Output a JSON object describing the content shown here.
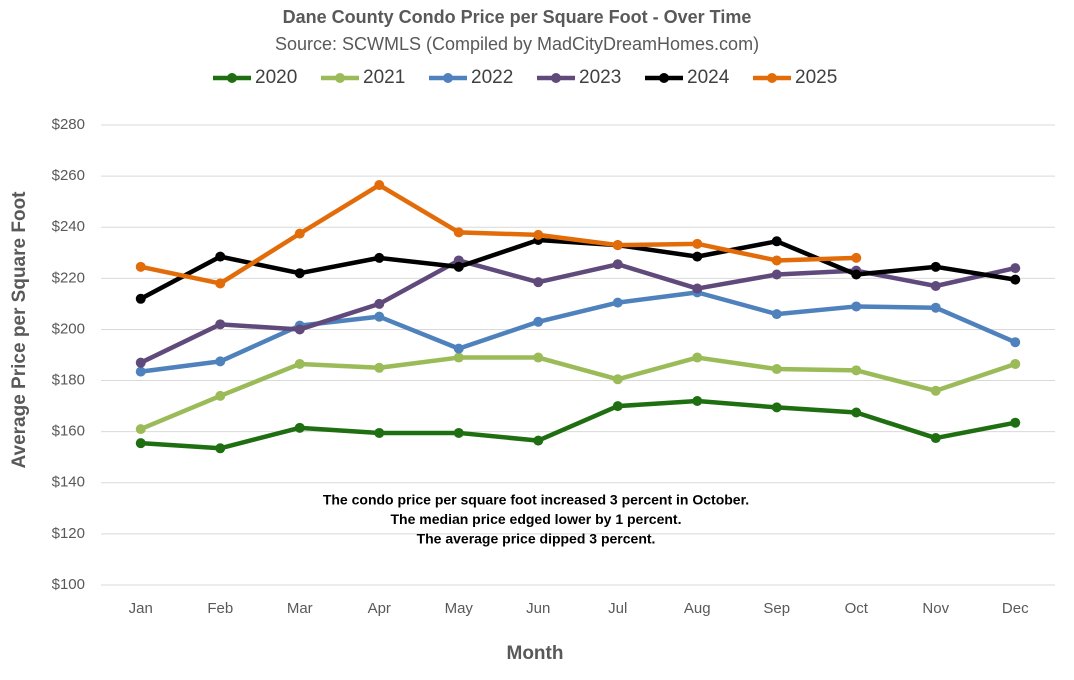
{
  "chart_data": {
    "type": "line",
    "title": "Dane County Condo Price per Square Foot - Over Time",
    "subtitle": "Source: SCWMLS (Compiled by MadCityDreamHomes.com)",
    "x_label": "Month",
    "y_label": "Average Price per Square Foot",
    "categories": [
      "Jan",
      "Feb",
      "Mar",
      "Apr",
      "May",
      "Jun",
      "Jul",
      "Aug",
      "Sep",
      "Oct",
      "Nov",
      "Dec"
    ],
    "series": [
      {
        "name": "2020",
        "color": "#1f6f12",
        "values": [
          155.5,
          153.5,
          161.5,
          159.5,
          159.5,
          156.5,
          170,
          172,
          169.5,
          167.5,
          157.5,
          163.5
        ]
      },
      {
        "name": "2021",
        "color": "#9bbb59",
        "values": [
          161,
          174,
          186.5,
          185,
          189,
          189,
          180.5,
          189,
          184.5,
          184,
          176,
          186.5
        ]
      },
      {
        "name": "2022",
        "color": "#4f81bd",
        "values": [
          183.5,
          187.5,
          201.5,
          205,
          192.5,
          203,
          210.5,
          214.5,
          206,
          209,
          208.5,
          195
        ]
      },
      {
        "name": "2023",
        "color": "#604a7b",
        "values": [
          187,
          202,
          200,
          210,
          227,
          218.5,
          225.5,
          216,
          221.5,
          223,
          217,
          224
        ]
      },
      {
        "name": "2024",
        "color": "#000000",
        "values": [
          212,
          228.5,
          222,
          228,
          224.5,
          235,
          233,
          228.5,
          234.5,
          221.5,
          224.5,
          219.5
        ]
      },
      {
        "name": "2025",
        "color": "#e36c0a",
        "values": [
          224.5,
          218,
          237.5,
          256.5,
          238,
          237,
          233,
          233.5,
          227,
          228,
          null,
          null
        ]
      }
    ],
    "ylim": [
      100,
      280
    ],
    "yticks": [
      {
        "value": 100,
        "label": "$100"
      },
      {
        "value": 120,
        "label": "$120"
      },
      {
        "value": 140,
        "label": "$140"
      },
      {
        "value": 160,
        "label": "$160"
      },
      {
        "value": 180,
        "label": "$180"
      },
      {
        "value": 200,
        "label": "$200"
      },
      {
        "value": 220,
        "label": "$220"
      },
      {
        "value": 240,
        "label": "$240"
      },
      {
        "value": 260,
        "label": "$260"
      },
      {
        "value": 280,
        "label": "$280"
      }
    ],
    "grid": true,
    "legend": "top",
    "annotation": [
      "The condo price per square foot increased 3 percent in October.",
      "The median price edged lower by 1 percent.",
      "The average price dipped 3 percent."
    ]
  }
}
